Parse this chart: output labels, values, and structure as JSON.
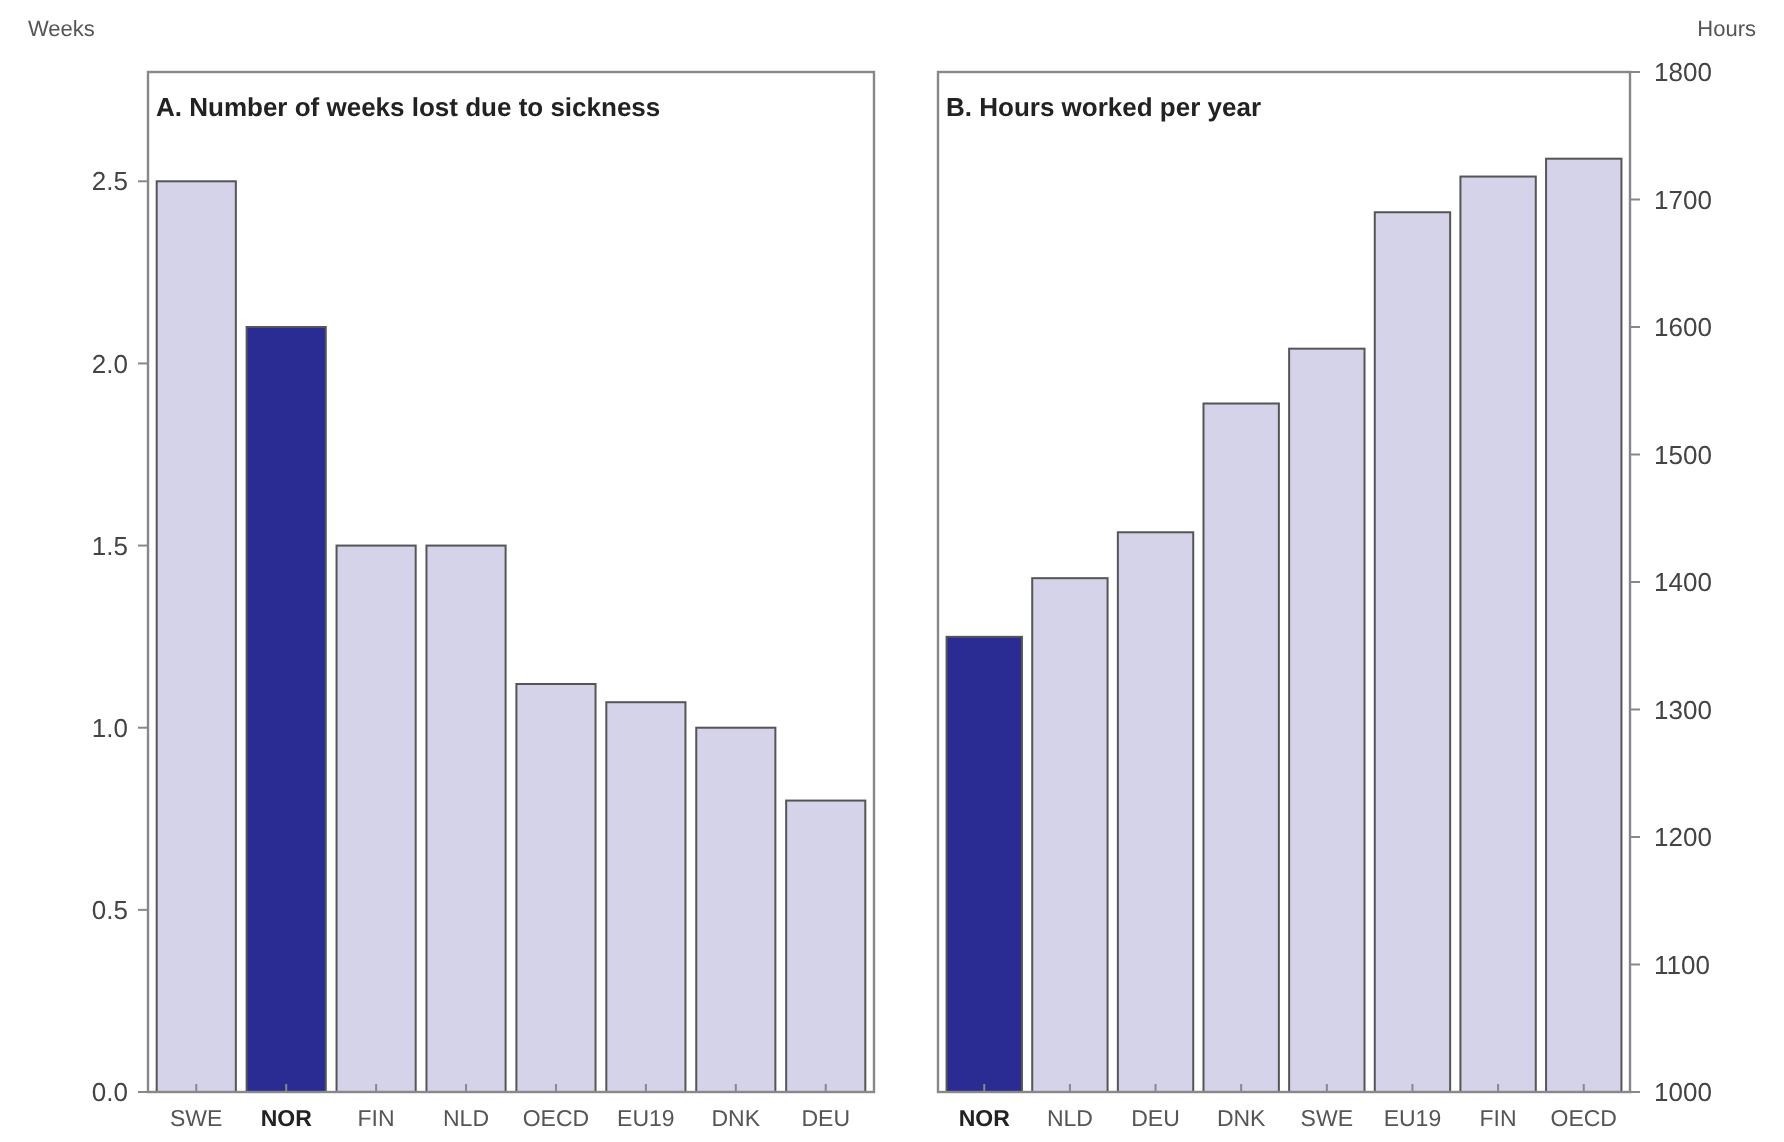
{
  "chart_data": [
    {
      "type": "bar",
      "title": "A. Number of weeks lost due to sickness",
      "ylabel": "Weeks",
      "categories": [
        "SWE",
        "NOR",
        "FIN",
        "NLD",
        "OECD",
        "EU19",
        "DNK",
        "DEU"
      ],
      "values": [
        2.5,
        2.1,
        1.5,
        1.5,
        1.12,
        1.07,
        1.0,
        0.8
      ],
      "colors": [
        "#d4d3ea",
        "#2a2c94",
        "#d4d3ea",
        "#d4d3ea",
        "#d4d3ea",
        "#d4d3ea",
        "#d4d3ea",
        "#d4d3ea"
      ],
      "ylim": [
        0,
        2.8
      ],
      "yticks": [
        {
          "value": 0,
          "label": "0.0"
        },
        {
          "value": 0.5,
          "label": "0.5"
        },
        {
          "value": 1,
          "label": "1.0"
        },
        {
          "value": 1.5,
          "label": "1.5"
        },
        {
          "value": 2,
          "label": "2.0"
        },
        {
          "value": 2.5,
          "label": "2.5"
        }
      ],
      "grid": false
    },
    {
      "type": "bar",
      "title": "B. Hours worked per year",
      "ylabel": "Hours",
      "categories": [
        "NOR",
        "NLD",
        "DEU",
        "DNK",
        "SWE",
        "EU19",
        "FIN",
        "OECD"
      ],
      "values": [
        1357,
        1403,
        1439,
        1540,
        1583,
        1690,
        1718,
        1732
      ],
      "colors": [
        "#2a2c94",
        "#d4d3ea",
        "#d4d3ea",
        "#d4d3ea",
        "#d4d3ea",
        "#d4d3ea",
        "#d4d3ea",
        "#d4d3ea"
      ],
      "ylim": [
        1000,
        1800
      ],
      "yticks": [
        1000,
        1100,
        1200,
        1300,
        1400,
        1500,
        1600,
        1700,
        1800
      ],
      "grid": false
    }
  ]
}
